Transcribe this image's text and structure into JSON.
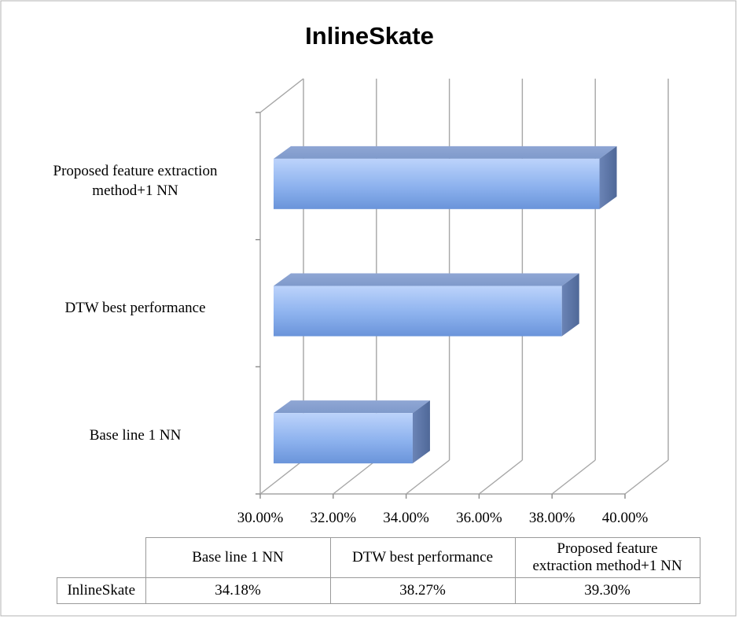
{
  "chart_data": {
    "type": "bar",
    "orientation": "horizontal",
    "title": "InlineSkate",
    "categories": [
      "Base line 1 NN",
      "DTW best performance",
      "Proposed feature extraction method+1 NN"
    ],
    "category_label_lines": [
      [
        "Base line 1 NN"
      ],
      [
        "DTW best performance"
      ],
      [
        "Proposed feature extraction",
        "method+1 NN"
      ]
    ],
    "series": [
      {
        "name": "InlineSkate",
        "values": [
          34.18,
          38.27,
          39.3
        ]
      }
    ],
    "xlim": [
      30,
      40
    ],
    "x_ticks": [
      "30.00%",
      "32.00%",
      "34.00%",
      "36.00%",
      "38.00%",
      "40.00%"
    ],
    "grid": true,
    "style": "3d",
    "bar_color": "#7fa6e6"
  },
  "table": {
    "headers": [
      "Base line 1 NN",
      "DTW best performance",
      "Proposed feature extraction method+1 NN"
    ],
    "header_lines": [
      [
        "Base line 1 NN"
      ],
      [
        "DTW best performance"
      ],
      [
        "Proposed feature",
        "extraction method+1 NN"
      ]
    ],
    "row_label": "InlineSkate",
    "values": [
      "34.18%",
      "38.27%",
      "39.30%"
    ]
  }
}
